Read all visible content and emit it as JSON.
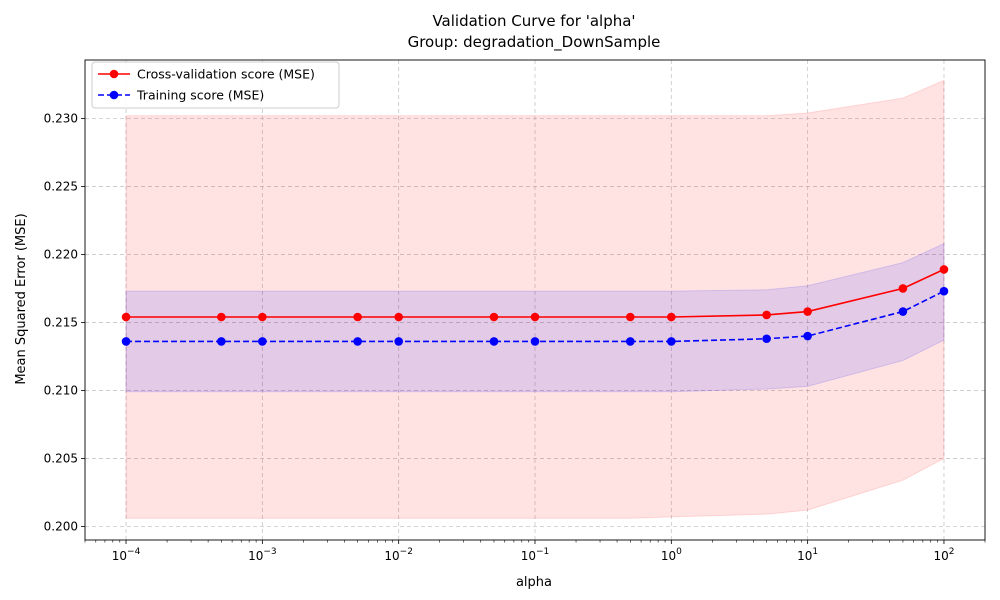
{
  "chart_data": {
    "type": "line",
    "title": "Validation Curve for 'alpha'",
    "subtitle": "Group: degradation_DownSample",
    "xlabel": "alpha",
    "ylabel": "Mean Squared Error (MSE)",
    "xscale": "log",
    "xlim": [
      5e-05,
      200
    ],
    "ylim": [
      0.199,
      0.2343
    ],
    "grid": true,
    "legend_position": "top-left",
    "x": [
      0.0001,
      0.0005,
      0.001,
      0.005,
      0.01,
      0.05,
      0.1,
      0.5,
      1,
      5,
      10,
      50,
      100
    ],
    "series": [
      {
        "name": "Cross-validation score (MSE)",
        "color": "#ff0000",
        "linestyle": "solid",
        "marker": "circle",
        "values": [
          0.2154,
          0.2154,
          0.2154,
          0.2154,
          0.2154,
          0.2154,
          0.2154,
          0.2154,
          0.2154,
          0.21555,
          0.2158,
          0.2175,
          0.2189
        ],
        "band_upper": [
          0.2302,
          0.2302,
          0.2302,
          0.2302,
          0.2302,
          0.2302,
          0.2302,
          0.2302,
          0.2302,
          0.2302,
          0.2304,
          0.2315,
          0.2328
        ],
        "band_lower": [
          0.2006,
          0.2006,
          0.2006,
          0.2006,
          0.2006,
          0.2006,
          0.2006,
          0.2006,
          0.2007,
          0.2009,
          0.2012,
          0.2034,
          0.205
        ],
        "band_color": "#ff0000"
      },
      {
        "name": "Training score (MSE)",
        "color": "#0000ff",
        "linestyle": "dashed",
        "marker": "circle",
        "values": [
          0.2136,
          0.2136,
          0.2136,
          0.2136,
          0.2136,
          0.2136,
          0.2136,
          0.2136,
          0.2136,
          0.2138,
          0.214,
          0.2158,
          0.2173
        ],
        "band_upper": [
          0.2173,
          0.2173,
          0.2173,
          0.2173,
          0.2173,
          0.2173,
          0.2173,
          0.2173,
          0.2173,
          0.2174,
          0.2177,
          0.2194,
          0.2208
        ],
        "band_lower": [
          0.2099,
          0.2099,
          0.2099,
          0.2099,
          0.2099,
          0.2099,
          0.2099,
          0.2099,
          0.2099,
          0.2101,
          0.2103,
          0.2122,
          0.2137
        ],
        "band_color": "#0000ff"
      }
    ],
    "yticks": [
      "0.200",
      "0.205",
      "0.210",
      "0.215",
      "0.220",
      "0.225",
      "0.230"
    ],
    "xticks": [
      {
        "value": 0.0001,
        "base": "10",
        "exp": "−4"
      },
      {
        "value": 0.001,
        "base": "10",
        "exp": "−3"
      },
      {
        "value": 0.01,
        "base": "10",
        "exp": "−2"
      },
      {
        "value": 0.1,
        "base": "10",
        "exp": "−1"
      },
      {
        "value": 1,
        "base": "10",
        "exp": "0"
      },
      {
        "value": 10,
        "base": "10",
        "exp": "1"
      },
      {
        "value": 100,
        "base": "10",
        "exp": "2"
      }
    ]
  }
}
